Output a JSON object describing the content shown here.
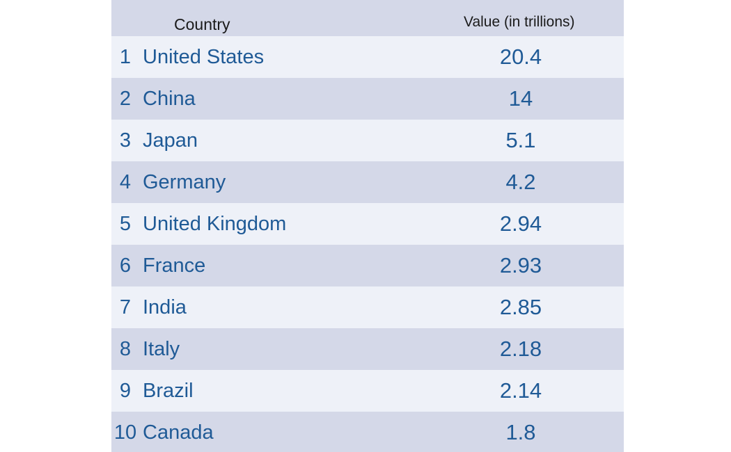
{
  "chart_data": {
    "type": "table",
    "columns": [
      "Country",
      "Value (in trillions)"
    ],
    "rows": [
      {
        "rank": "1",
        "country": "United States",
        "value": "20.4"
      },
      {
        "rank": "2",
        "country": "China",
        "value": "14"
      },
      {
        "rank": "3",
        "country": "Japan",
        "value": "5.1"
      },
      {
        "rank": "4",
        "country": "Germany",
        "value": "4.2"
      },
      {
        "rank": "5",
        "country": "United Kingdom",
        "value": "2.94"
      },
      {
        "rank": "6",
        "country": "France",
        "value": "2.93"
      },
      {
        "rank": "7",
        "country": "India",
        "value": "2.85"
      },
      {
        "rank": "8",
        "country": "Italy",
        "value": "2.18"
      },
      {
        "rank": "9",
        "country": "Brazil",
        "value": "2.14"
      },
      {
        "rank": "10",
        "country": "Canada",
        "value": "1.8"
      }
    ],
    "colors": {
      "header_bg": "#d4d8e8",
      "row_light": "#eef1f8",
      "row_dark": "#d4d8e8",
      "text": "#1f5a96"
    }
  }
}
